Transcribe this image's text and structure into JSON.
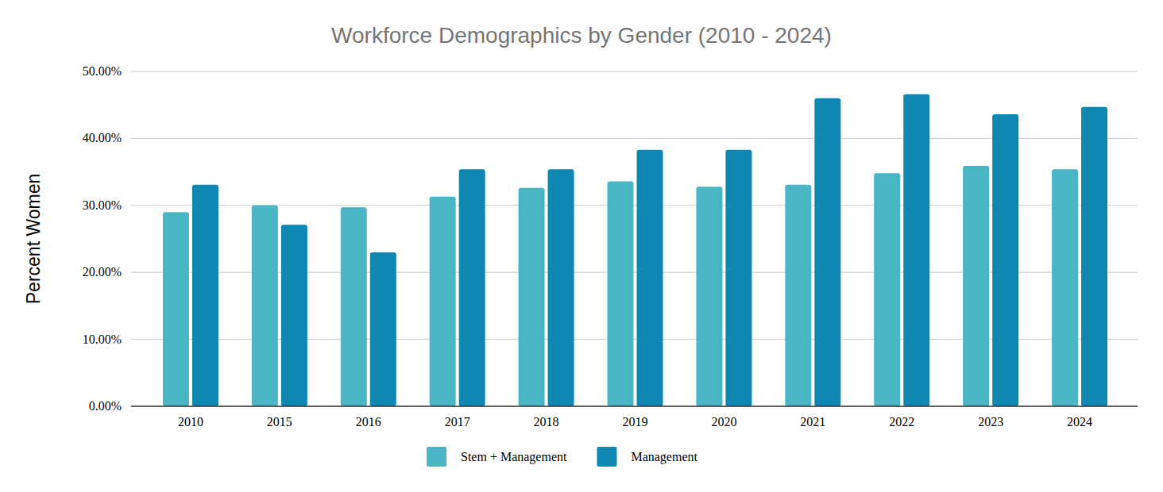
{
  "chart_data": {
    "type": "bar",
    "title": "Workforce Demographics by Gender (2010 - 2024)",
    "y_label": "Percent Women",
    "categories": [
      "2010",
      "2015",
      "2016",
      "2017",
      "2018",
      "2019",
      "2020",
      "2021",
      "2022",
      "2023",
      "2024"
    ],
    "series": [
      {
        "name": "Stem + Management",
        "color": "#4ab5c4",
        "values": [
          29.0,
          30.0,
          29.7,
          31.3,
          32.6,
          33.6,
          32.8,
          33.1,
          34.8,
          35.9,
          35.4
        ]
      },
      {
        "name": "Management",
        "color": "#0e87b3",
        "values": [
          33.1,
          27.1,
          23.0,
          35.4,
          35.4,
          38.3,
          38.3,
          46.0,
          46.6,
          43.6,
          44.7
        ]
      }
    ],
    "ylim": [
      0,
      50
    ],
    "yticks": [
      {
        "value": 0,
        "label": "0.00%"
      },
      {
        "value": 10,
        "label": "10.00%"
      },
      {
        "value": 20,
        "label": "20.00%"
      },
      {
        "value": 30,
        "label": "30.00%"
      },
      {
        "value": 40,
        "label": "40.00%"
      },
      {
        "value": 50,
        "label": "50.00%"
      }
    ],
    "grid": true,
    "legend": "bottom"
  }
}
